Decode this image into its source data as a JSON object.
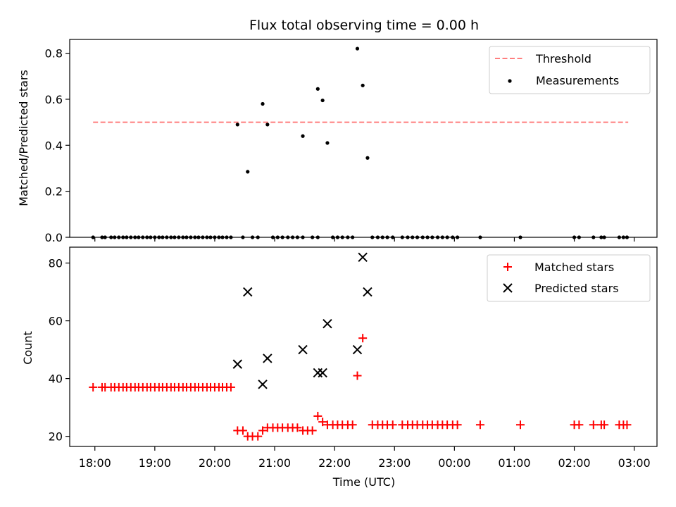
{
  "chart_data": [
    {
      "type": "scatter",
      "title": "Flux total observing time = 0.00 h",
      "xlabel": "",
      "ylabel": "Matched/Predicted stars",
      "xlim": [
        17.58,
        27.38
      ],
      "ylim": [
        0.0,
        0.86
      ],
      "yticks": [
        0.0,
        0.2,
        0.4,
        0.6,
        0.8
      ],
      "ytick_labels": [
        "0.0",
        "0.2",
        "0.4",
        "0.6",
        "0.8"
      ],
      "show_xtick_labels": false,
      "legend": {
        "placement": "top-right",
        "entries": [
          "Threshold",
          "Measurements"
        ]
      },
      "threshold": {
        "name": "Threshold",
        "value": 0.5,
        "x_start": 17.97,
        "x_end": 26.9,
        "color": "#ff7f7f"
      },
      "series": [
        {
          "name": "Measurements",
          "marker": "dot",
          "color": "#000000",
          "points": [
            [
              17.97,
              0.0
            ],
            [
              18.12,
              0.0
            ],
            [
              18.17,
              0.0
            ],
            [
              18.27,
              0.0
            ],
            [
              18.33,
              0.0
            ],
            [
              18.4,
              0.0
            ],
            [
              18.47,
              0.0
            ],
            [
              18.53,
              0.0
            ],
            [
              18.6,
              0.0
            ],
            [
              18.67,
              0.0
            ],
            [
              18.73,
              0.0
            ],
            [
              18.8,
              0.0
            ],
            [
              18.87,
              0.0
            ],
            [
              18.93,
              0.0
            ],
            [
              19.0,
              0.0
            ],
            [
              19.07,
              0.0
            ],
            [
              19.13,
              0.0
            ],
            [
              19.2,
              0.0
            ],
            [
              19.27,
              0.0
            ],
            [
              19.33,
              0.0
            ],
            [
              19.4,
              0.0
            ],
            [
              19.47,
              0.0
            ],
            [
              19.53,
              0.0
            ],
            [
              19.6,
              0.0
            ],
            [
              19.67,
              0.0
            ],
            [
              19.73,
              0.0
            ],
            [
              19.8,
              0.0
            ],
            [
              19.87,
              0.0
            ],
            [
              19.93,
              0.0
            ],
            [
              20.0,
              0.0
            ],
            [
              20.07,
              0.0
            ],
            [
              20.13,
              0.0
            ],
            [
              20.2,
              0.0
            ],
            [
              20.27,
              0.0
            ],
            [
              20.47,
              0.0
            ],
            [
              20.63,
              0.0
            ],
            [
              20.72,
              0.0
            ],
            [
              20.97,
              0.0
            ],
            [
              21.05,
              0.0
            ],
            [
              21.13,
              0.0
            ],
            [
              21.22,
              0.0
            ],
            [
              21.3,
              0.0
            ],
            [
              21.38,
              0.0
            ],
            [
              21.47,
              0.0
            ],
            [
              21.63,
              0.0
            ],
            [
              21.72,
              0.0
            ],
            [
              21.97,
              0.0
            ],
            [
              22.05,
              0.0
            ],
            [
              22.13,
              0.0
            ],
            [
              22.22,
              0.0
            ],
            [
              22.3,
              0.0
            ],
            [
              22.63,
              0.0
            ],
            [
              22.72,
              0.0
            ],
            [
              22.8,
              0.0
            ],
            [
              22.88,
              0.0
            ],
            [
              22.97,
              0.0
            ],
            [
              23.13,
              0.0
            ],
            [
              23.22,
              0.0
            ],
            [
              23.3,
              0.0
            ],
            [
              23.38,
              0.0
            ],
            [
              23.47,
              0.0
            ],
            [
              23.55,
              0.0
            ],
            [
              23.63,
              0.0
            ],
            [
              23.72,
              0.0
            ],
            [
              23.8,
              0.0
            ],
            [
              23.88,
              0.0
            ],
            [
              23.97,
              0.0
            ],
            [
              24.05,
              0.0
            ],
            [
              24.43,
              0.0
            ],
            [
              25.1,
              0.0
            ],
            [
              26.0,
              0.0
            ],
            [
              26.08,
              0.0
            ],
            [
              26.32,
              0.0
            ],
            [
              26.45,
              0.0
            ],
            [
              26.5,
              0.0
            ],
            [
              26.75,
              0.0
            ],
            [
              26.82,
              0.0
            ],
            [
              26.88,
              0.0
            ],
            [
              20.38,
              0.49
            ],
            [
              20.55,
              0.285
            ],
            [
              20.8,
              0.58
            ],
            [
              20.88,
              0.49
            ],
            [
              21.47,
              0.44
            ],
            [
              21.72,
              0.645
            ],
            [
              21.8,
              0.595
            ],
            [
              21.88,
              0.41
            ],
            [
              22.38,
              0.82
            ],
            [
              22.47,
              0.66
            ],
            [
              22.55,
              0.345
            ]
          ]
        }
      ]
    },
    {
      "type": "scatter",
      "title": "",
      "xlabel": "Time (UTC)",
      "ylabel": "Count",
      "xlim": [
        17.58,
        27.38
      ],
      "ylim": [
        16.5,
        85.5
      ],
      "yticks": [
        20,
        40,
        60,
        80
      ],
      "ytick_labels": [
        "20",
        "40",
        "60",
        "80"
      ],
      "xticks": [
        18,
        19,
        20,
        21,
        22,
        23,
        24,
        25,
        26,
        27
      ],
      "xtick_labels": [
        "18:00",
        "19:00",
        "20:00",
        "21:00",
        "22:00",
        "23:00",
        "00:00",
        "01:00",
        "02:00",
        "03:00"
      ],
      "legend": {
        "placement": "top-right",
        "entries": [
          "Matched stars",
          "Predicted stars"
        ]
      },
      "series": [
        {
          "name": "Matched stars",
          "marker": "plus",
          "color": "#ff0000",
          "points": [
            [
              17.97,
              37
            ],
            [
              18.12,
              37
            ],
            [
              18.17,
              37
            ],
            [
              18.27,
              37
            ],
            [
              18.33,
              37
            ],
            [
              18.4,
              37
            ],
            [
              18.47,
              37
            ],
            [
              18.53,
              37
            ],
            [
              18.6,
              37
            ],
            [
              18.67,
              37
            ],
            [
              18.73,
              37
            ],
            [
              18.8,
              37
            ],
            [
              18.87,
              37
            ],
            [
              18.93,
              37
            ],
            [
              19.0,
              37
            ],
            [
              19.07,
              37
            ],
            [
              19.13,
              37
            ],
            [
              19.2,
              37
            ],
            [
              19.27,
              37
            ],
            [
              19.33,
              37
            ],
            [
              19.4,
              37
            ],
            [
              19.47,
              37
            ],
            [
              19.53,
              37
            ],
            [
              19.6,
              37
            ],
            [
              19.67,
              37
            ],
            [
              19.73,
              37
            ],
            [
              19.8,
              37
            ],
            [
              19.87,
              37
            ],
            [
              19.93,
              37
            ],
            [
              20.0,
              37
            ],
            [
              20.07,
              37
            ],
            [
              20.13,
              37
            ],
            [
              20.2,
              37
            ],
            [
              20.27,
              37
            ],
            [
              20.38,
              22
            ],
            [
              20.47,
              22
            ],
            [
              20.55,
              20
            ],
            [
              20.63,
              20
            ],
            [
              20.72,
              20
            ],
            [
              20.8,
              22
            ],
            [
              20.88,
              23
            ],
            [
              20.97,
              23
            ],
            [
              21.05,
              23
            ],
            [
              21.13,
              23
            ],
            [
              21.22,
              23
            ],
            [
              21.3,
              23
            ],
            [
              21.38,
              23
            ],
            [
              21.47,
              22
            ],
            [
              21.55,
              22
            ],
            [
              21.63,
              22
            ],
            [
              21.72,
              27
            ],
            [
              21.8,
              25
            ],
            [
              21.88,
              24
            ],
            [
              21.97,
              24
            ],
            [
              22.05,
              24
            ],
            [
              22.13,
              24
            ],
            [
              22.22,
              24
            ],
            [
              22.3,
              24
            ],
            [
              22.38,
              41
            ],
            [
              22.47,
              54
            ],
            [
              22.63,
              24
            ],
            [
              22.72,
              24
            ],
            [
              22.8,
              24
            ],
            [
              22.88,
              24
            ],
            [
              22.97,
              24
            ],
            [
              23.13,
              24
            ],
            [
              23.22,
              24
            ],
            [
              23.3,
              24
            ],
            [
              23.38,
              24
            ],
            [
              23.47,
              24
            ],
            [
              23.55,
              24
            ],
            [
              23.63,
              24
            ],
            [
              23.72,
              24
            ],
            [
              23.8,
              24
            ],
            [
              23.88,
              24
            ],
            [
              23.97,
              24
            ],
            [
              24.05,
              24
            ],
            [
              24.43,
              24
            ],
            [
              25.1,
              24
            ],
            [
              26.0,
              24
            ],
            [
              26.08,
              24
            ],
            [
              26.32,
              24
            ],
            [
              26.45,
              24
            ],
            [
              26.5,
              24
            ],
            [
              26.75,
              24
            ],
            [
              26.82,
              24
            ],
            [
              26.88,
              24
            ]
          ]
        },
        {
          "name": "Predicted stars",
          "marker": "x",
          "color": "#000000",
          "points": [
            [
              20.38,
              45
            ],
            [
              20.55,
              70
            ],
            [
              20.8,
              38
            ],
            [
              20.88,
              47
            ],
            [
              21.47,
              50
            ],
            [
              21.72,
              42
            ],
            [
              21.8,
              42
            ],
            [
              21.88,
              59
            ],
            [
              22.38,
              50
            ],
            [
              22.47,
              82
            ],
            [
              22.55,
              70
            ]
          ]
        }
      ]
    }
  ]
}
